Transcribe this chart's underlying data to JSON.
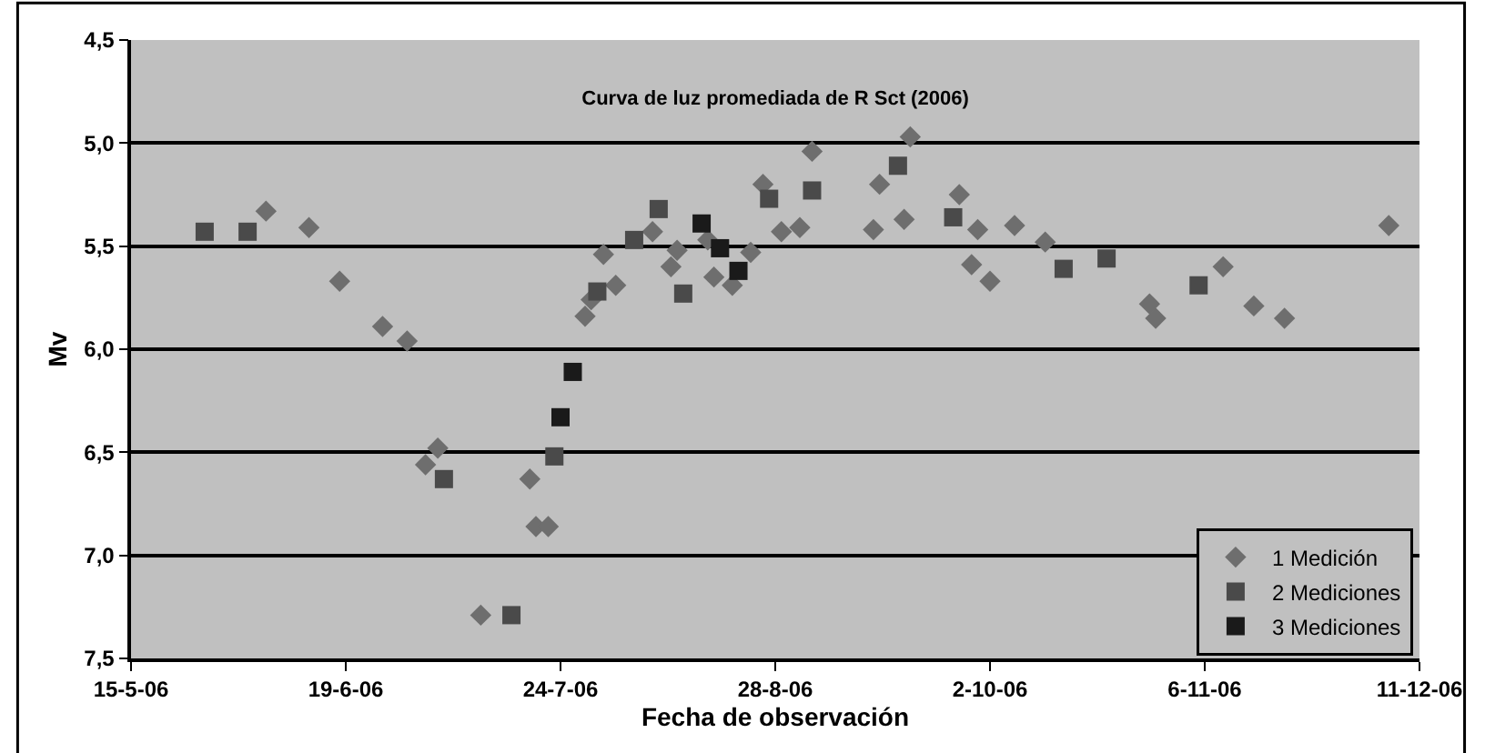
{
  "chart_data": {
    "type": "scatter",
    "title": "Curva de luz promediada de R Sct (2006)",
    "xlabel": "Fecha de observación",
    "ylabel": "Mv",
    "xlim": [
      "2006-05-15",
      "2006-12-11"
    ],
    "xticks": [
      {
        "value": "2006-05-15",
        "label": "15-5-06"
      },
      {
        "value": "2006-06-19",
        "label": "19-6-06"
      },
      {
        "value": "2006-07-24",
        "label": "24-7-06"
      },
      {
        "value": "2006-08-28",
        "label": "28-8-06"
      },
      {
        "value": "2006-10-02",
        "label": "2-10-06"
      },
      {
        "value": "2006-11-06",
        "label": "6-11-06"
      },
      {
        "value": "2006-12-11",
        "label": "11-12-06"
      }
    ],
    "ylim": [
      7.5,
      4.5
    ],
    "yticks": [
      {
        "value": 4.5,
        "label": "4,5"
      },
      {
        "value": 5.0,
        "label": "5,0"
      },
      {
        "value": 5.5,
        "label": "5,5"
      },
      {
        "value": 6.0,
        "label": "6,0"
      },
      {
        "value": 6.5,
        "label": "6,5"
      },
      {
        "value": 7.0,
        "label": "7,0"
      },
      {
        "value": 7.5,
        "label": "7,5"
      }
    ],
    "grid": "y",
    "legend": "bottom right",
    "series": [
      {
        "name": "1 Medición",
        "color": "#6e6e6e",
        "marker": "diamond",
        "x": [
          "2006-06-06",
          "2006-06-13",
          "2006-06-18",
          "2006-06-25",
          "2006-06-29",
          "2006-07-02",
          "2006-07-04",
          "2006-07-11",
          "2006-07-19",
          "2006-07-20",
          "2006-07-22",
          "2006-07-28",
          "2006-07-29",
          "2006-07-31",
          "2006-08-02",
          "2006-08-08",
          "2006-08-11",
          "2006-08-12",
          "2006-08-17",
          "2006-08-18",
          "2006-08-21",
          "2006-08-24",
          "2006-08-26",
          "2006-08-29",
          "2006-09-01",
          "2006-09-03",
          "2006-09-13",
          "2006-09-14",
          "2006-09-18",
          "2006-09-19",
          "2006-09-27",
          "2006-09-29",
          "2006-09-30",
          "2006-10-02",
          "2006-10-06",
          "2006-10-11",
          "2006-10-28",
          "2006-10-29",
          "2006-11-09",
          "2006-11-14",
          "2006-11-19",
          "2006-12-06"
        ],
        "values": [
          5.33,
          5.41,
          5.67,
          5.89,
          5.96,
          6.56,
          6.48,
          7.29,
          6.63,
          6.86,
          6.86,
          5.84,
          5.76,
          5.54,
          5.69,
          5.43,
          5.6,
          5.52,
          5.47,
          5.65,
          5.69,
          5.53,
          5.2,
          5.43,
          5.41,
          5.04,
          5.42,
          5.2,
          5.37,
          4.97,
          5.25,
          5.59,
          5.42,
          5.67,
          5.4,
          5.48,
          5.78,
          5.85,
          5.6,
          5.79,
          5.85,
          5.4
        ]
      },
      {
        "name": "2 Mediciones",
        "color": "#4a4a4a",
        "marker": "square",
        "x": [
          "2006-05-27",
          "2006-06-03",
          "2006-07-05",
          "2006-07-16",
          "2006-07-23",
          "2006-07-30",
          "2006-08-05",
          "2006-08-09",
          "2006-08-13",
          "2006-08-27",
          "2006-09-03",
          "2006-09-17",
          "2006-09-26",
          "2006-10-14",
          "2006-10-21",
          "2006-11-05"
        ],
        "values": [
          5.43,
          5.43,
          6.63,
          7.29,
          6.52,
          5.72,
          5.47,
          5.32,
          5.73,
          5.27,
          5.23,
          5.11,
          5.36,
          5.61,
          5.56,
          5.69
        ]
      },
      {
        "name": "3 Mediciones",
        "color": "#1a1a1a",
        "marker": "square",
        "x": [
          "2006-07-24",
          "2006-07-26",
          "2006-08-16",
          "2006-08-19",
          "2006-08-22"
        ],
        "values": [
          6.33,
          6.11,
          5.39,
          5.51,
          5.62
        ]
      }
    ]
  }
}
